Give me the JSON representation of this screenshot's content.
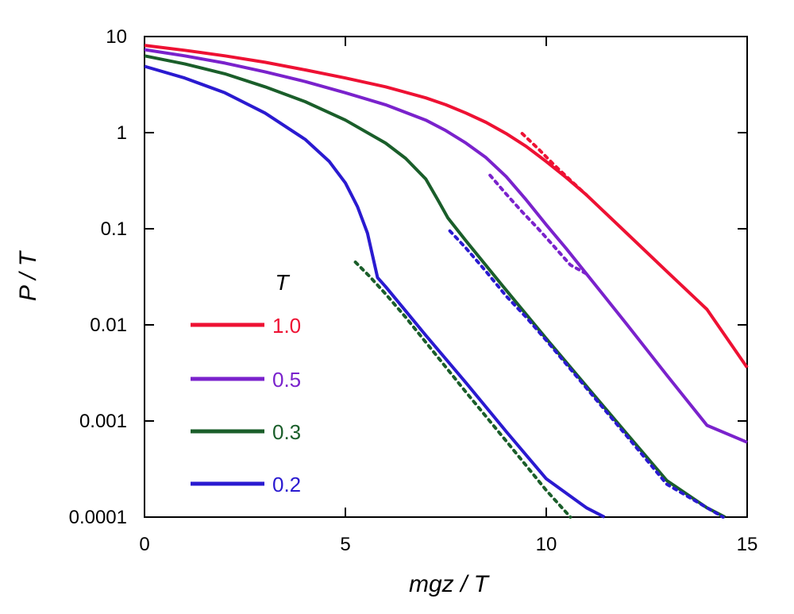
{
  "chart_data": {
    "type": "line",
    "xlabel": "mgz / T",
    "ylabel": "P / T",
    "xlim": [
      0,
      15
    ],
    "ylim": [
      0.0001,
      10
    ],
    "yscale": "log",
    "x_ticks": [
      "0",
      "5",
      "10",
      "15"
    ],
    "y_ticks": [
      "0.0001",
      "0.001",
      "0.01",
      "0.1",
      "1",
      "10"
    ],
    "legend_title": "T",
    "legend_position": "left",
    "grid": false,
    "series": [
      {
        "name": "1.0",
        "color": "#ee1133",
        "solid": [
          [
            0,
            8.1
          ],
          [
            1,
            7.2
          ],
          [
            2,
            6.3
          ],
          [
            3,
            5.4
          ],
          [
            4,
            4.5
          ],
          [
            5,
            3.7
          ],
          [
            6,
            3.0
          ],
          [
            7,
            2.3
          ],
          [
            7.5,
            1.95
          ],
          [
            8,
            1.6
          ],
          [
            8.5,
            1.28
          ],
          [
            9,
            0.98
          ],
          [
            9.5,
            0.72
          ],
          [
            10,
            0.5
          ],
          [
            10.5,
            0.34
          ],
          [
            11,
            0.225
          ],
          [
            12,
            0.09
          ],
          [
            13,
            0.036
          ],
          [
            14,
            0.0145
          ],
          [
            15,
            0.0036
          ]
        ],
        "dotted": [
          [
            9.4,
            0.98
          ],
          [
            9.8,
            0.68
          ],
          [
            10.2,
            0.46
          ],
          [
            10.6,
            0.32
          ],
          [
            11,
            0.225
          ]
        ]
      },
      {
        "name": "0.5",
        "color": "#7a22cc",
        "solid": [
          [
            0,
            7.3
          ],
          [
            1,
            6.3
          ],
          [
            2,
            5.3
          ],
          [
            3,
            4.3
          ],
          [
            4,
            3.4
          ],
          [
            5,
            2.6
          ],
          [
            6,
            1.95
          ],
          [
            7,
            1.35
          ],
          [
            7.5,
            1.05
          ],
          [
            8,
            0.78
          ],
          [
            8.5,
            0.55
          ],
          [
            9,
            0.35
          ],
          [
            9.5,
            0.2
          ],
          [
            10,
            0.11
          ],
          [
            10.5,
            0.062
          ],
          [
            11,
            0.034
          ],
          [
            12,
            0.0102
          ],
          [
            13,
            0.003
          ],
          [
            14,
            0.0009
          ],
          [
            15,
            0.0006
          ]
        ],
        "dotted": [
          [
            8.6,
            0.36
          ],
          [
            9,
            0.23
          ],
          [
            9.4,
            0.15
          ],
          [
            9.8,
            0.1
          ],
          [
            10.2,
            0.065
          ],
          [
            10.6,
            0.042
          ],
          [
            11,
            0.034
          ]
        ]
      },
      {
        "name": "0.3",
        "color": "#1a5e2a",
        "solid": [
          [
            0,
            6.3
          ],
          [
            1,
            5.2
          ],
          [
            2,
            4.1
          ],
          [
            3,
            3.0
          ],
          [
            4,
            2.1
          ],
          [
            5,
            1.35
          ],
          [
            6,
            0.78
          ],
          [
            6.5,
            0.54
          ],
          [
            7,
            0.33
          ],
          [
            7.3,
            0.2
          ],
          [
            7.55,
            0.13
          ],
          [
            8,
            0.075
          ],
          [
            9,
            0.023
          ],
          [
            10,
            0.0072
          ],
          [
            11,
            0.0023
          ],
          [
            12,
            0.00074
          ],
          [
            13,
            0.00024
          ],
          [
            14,
            0.000125
          ],
          [
            14.45,
            0.0001
          ]
        ],
        "dotted": [
          [
            5.25,
            0.045
          ],
          [
            5.6,
            0.032
          ],
          [
            6,
            0.021
          ],
          [
            6.5,
            0.012
          ],
          [
            7,
            0.0066
          ],
          [
            8,
            0.002
          ],
          [
            9,
            0.00062
          ],
          [
            10,
            0.00019
          ],
          [
            10.6,
            0.0001
          ]
        ]
      },
      {
        "name": "0.2",
        "color": "#2a1ad0",
        "solid": [
          [
            0,
            4.9
          ],
          [
            1,
            3.7
          ],
          [
            2,
            2.6
          ],
          [
            3,
            1.6
          ],
          [
            4,
            0.85
          ],
          [
            4.6,
            0.5
          ],
          [
            5,
            0.3
          ],
          [
            5.3,
            0.17
          ],
          [
            5.55,
            0.09
          ],
          [
            5.8,
            0.031
          ],
          [
            6,
            0.025
          ],
          [
            7,
            0.0078
          ],
          [
            8,
            0.0025
          ],
          [
            9,
            0.00078
          ],
          [
            10,
            0.00025
          ],
          [
            11,
            0.000125
          ],
          [
            11.45,
            0.0001
          ]
        ],
        "dotted": [
          [
            7.6,
            0.095
          ],
          [
            8,
            0.063
          ],
          [
            8.5,
            0.036
          ],
          [
            9,
            0.02
          ],
          [
            9.5,
            0.012
          ],
          [
            10,
            0.0069
          ],
          [
            11,
            0.0022
          ],
          [
            12,
            0.0007
          ],
          [
            13,
            0.00022
          ],
          [
            14.4,
            0.0001
          ]
        ]
      }
    ]
  }
}
